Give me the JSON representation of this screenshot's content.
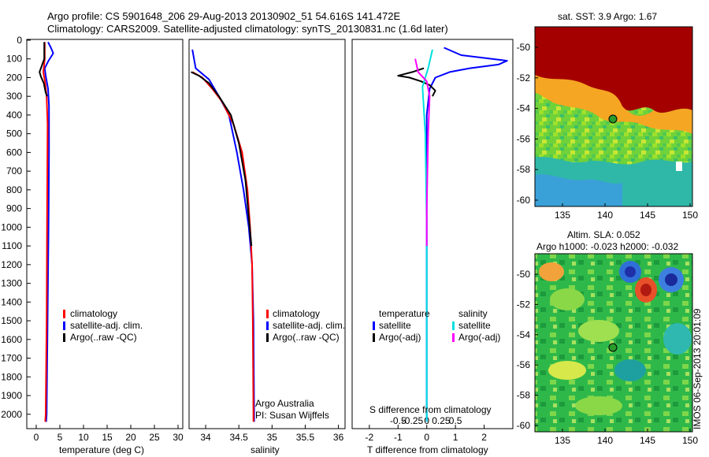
{
  "header": {
    "line1": "Argo profile: CS 5901648_206 29-Aug-2013 20130902_51 54.616S 141.472E",
    "line2": "Climatology: CARS2009. Satellite-adjusted climatology: synTS_20130831.nc (1.6d later)"
  },
  "side_label": "IMOS 06-Sep-2013 20:01:09",
  "credit": {
    "line1": "Argo Australia",
    "line2": "PI: Susan Wijffels"
  },
  "colors": {
    "climatology": "#ff0000",
    "satellite": "#0000ff",
    "argo": "#000000",
    "sal_satellite": "#00e0e0",
    "sal_argo": "#ff00ff",
    "land": "#a50000"
  },
  "legend1": [
    "climatology",
    "satellite-adj. clim.",
    "Argo(..raw -QC)"
  ],
  "diff_legend": {
    "temp_header": "temperature",
    "sal_header": "salinity",
    "temp_items": [
      "satellite",
      "Argo(-adj)"
    ],
    "sal_items": [
      "satellite",
      "Argo(-adj)"
    ]
  },
  "map1": {
    "title": "sat. SST: 3.9 Argo: 1.67",
    "x_ticks": [
      "135",
      "140",
      "145",
      "150"
    ],
    "y_ticks": [
      "-50",
      "-52",
      "-54",
      "-56",
      "-58",
      "-60"
    ]
  },
  "map2": {
    "title1": "Altim. SLA: 0.052",
    "title2": "Argo h1000: -0.023 h2000: -0.032",
    "x_ticks": [
      "135",
      "140",
      "145",
      "150"
    ],
    "y_ticks": [
      "-50",
      "-52",
      "-54",
      "-56",
      "-58",
      "-60"
    ]
  },
  "chart_data": [
    {
      "type": "line",
      "xlabel": "temperature (deg C)",
      "ylabel": "",
      "xlim": [
        -2,
        31
      ],
      "ylim": [
        2060,
        0
      ],
      "x_ticks": [
        0,
        5,
        10,
        15,
        20,
        25,
        30
      ],
      "y_ticks": [
        0,
        100,
        200,
        300,
        400,
        500,
        600,
        700,
        800,
        900,
        1000,
        1100,
        1200,
        1300,
        1400,
        1500,
        1600,
        1700,
        1800,
        1900,
        2000
      ],
      "series": [
        {
          "name": "satellite-adj. clim.",
          "color": "#0000ff",
          "points": [
            [
              2.5,
              10
            ],
            [
              3.1,
              40
            ],
            [
              3.6,
              70
            ],
            [
              2.6,
              110
            ],
            [
              1.8,
              150
            ],
            [
              2.0,
              190
            ],
            [
              2.5,
              260
            ],
            [
              2.7,
              350
            ],
            [
              2.7,
              600
            ],
            [
              2.6,
              1000
            ],
            [
              2.4,
              1500
            ],
            [
              2.2,
              2000
            ],
            [
              2.1,
              2040
            ]
          ]
        },
        {
          "name": "climatology",
          "color": "#ff0000",
          "points": [
            [
              1.8,
              10
            ],
            [
              1.8,
              100
            ],
            [
              1.5,
              170
            ],
            [
              1.9,
              230
            ],
            [
              2.2,
              300
            ],
            [
              2.4,
              450
            ],
            [
              2.3,
              900
            ],
            [
              2.2,
              1500
            ],
            [
              2.0,
              2000
            ],
            [
              1.9,
              2040
            ]
          ]
        },
        {
          "name": "Argo(..raw -QC)",
          "color": "#000000",
          "points": [
            [
              1.7,
              10
            ],
            [
              1.7,
              100
            ],
            [
              0.7,
              170
            ],
            [
              1.0,
              195
            ],
            [
              1.6,
              230
            ],
            [
              2.0,
              280
            ],
            [
              2.3,
              300
            ]
          ]
        }
      ]
    },
    {
      "type": "line",
      "xlabel": "salinity",
      "ylabel": "",
      "xlim": [
        33.75,
        36.1
      ],
      "ylim": [
        2060,
        0
      ],
      "x_ticks": [
        34,
        34.5,
        35,
        35.5,
        36
      ],
      "series": [
        {
          "name": "satellite-adj. clim.",
          "color": "#0000ff",
          "points": [
            [
              33.8,
              50
            ],
            [
              33.85,
              150
            ],
            [
              34.05,
              210
            ],
            [
              34.2,
              300
            ],
            [
              34.35,
              400
            ],
            [
              34.47,
              600
            ],
            [
              34.57,
              800
            ],
            [
              34.65,
              1000
            ],
            [
              34.7,
              1200
            ],
            [
              34.72,
              1500
            ],
            [
              34.73,
              2000
            ],
            [
              34.73,
              2040
            ]
          ]
        },
        {
          "name": "climatology",
          "color": "#ff0000",
          "points": [
            [
              33.8,
              170
            ],
            [
              33.95,
              200
            ],
            [
              34.1,
              260
            ],
            [
              34.25,
              330
            ],
            [
              34.42,
              450
            ],
            [
              34.55,
              600
            ],
            [
              34.63,
              800
            ],
            [
              34.67,
              1000
            ],
            [
              34.7,
              1200
            ],
            [
              34.71,
              1500
            ],
            [
              34.72,
              2000
            ],
            [
              34.72,
              2040
            ]
          ]
        },
        {
          "name": "Argo(..raw -QC)",
          "color": "#000000",
          "points": [
            [
              33.78,
              170
            ],
            [
              33.9,
              190
            ],
            [
              34.05,
              230
            ],
            [
              34.2,
              300
            ],
            [
              34.38,
              400
            ],
            [
              34.5,
              550
            ],
            [
              34.6,
              750
            ],
            [
              34.65,
              950
            ],
            [
              34.69,
              1100
            ]
          ]
        }
      ]
    },
    {
      "type": "line",
      "xlabel": "T difference from climatology",
      "ylabel": "",
      "title_top": "S difference from climatology",
      "xlim": [
        -2.6,
        3.0
      ],
      "ylim": [
        2060,
        0
      ],
      "x_ticks_bottom": [
        "-2",
        "-1",
        "0",
        "1",
        "2"
      ],
      "x_ticks_top": [
        "-0.5",
        "-0.25",
        "0",
        "0.25",
        "0.5"
      ],
      "series": [
        {
          "name": "satellite",
          "color": "#0000ff",
          "points": [
            [
              0.6,
              40
            ],
            [
              1.2,
              80
            ],
            [
              2.8,
              110
            ],
            [
              2.5,
              130
            ],
            [
              1.5,
              150
            ],
            [
              0.8,
              170
            ],
            [
              0.3,
              200
            ],
            [
              0.1,
              260
            ],
            [
              0.0,
              400
            ],
            [
              0.0,
              800
            ],
            [
              0.0,
              1200
            ],
            [
              0.0,
              1600
            ],
            [
              0.0,
              2040
            ]
          ]
        },
        {
          "name": "Argo(-adj)",
          "color": "#000000",
          "points": [
            [
              -0.1,
              150
            ],
            [
              -0.5,
              170
            ],
            [
              -1.0,
              190
            ],
            [
              -0.6,
              200
            ],
            [
              -0.2,
              220
            ],
            [
              0.1,
              240
            ],
            [
              0.3,
              270
            ],
            [
              0.2,
              300
            ]
          ]
        },
        {
          "name": "salinity satellite",
          "color": "#00e0e0",
          "points": [
            [
              0.2,
              50
            ],
            [
              0.05,
              150
            ],
            [
              -0.15,
              250
            ],
            [
              -0.05,
              500
            ],
            [
              0.0,
              1000
            ],
            [
              0.0,
              2040
            ]
          ]
        },
        {
          "name": "salinity Argo(-adj)",
          "color": "#ff00ff",
          "points": [
            [
              -0.4,
              100
            ],
            [
              -0.3,
              170
            ],
            [
              0.0,
              220
            ],
            [
              0.1,
              300
            ],
            [
              0.05,
              500
            ],
            [
              0.0,
              900
            ],
            [
              0.0,
              1100
            ]
          ]
        }
      ]
    }
  ]
}
